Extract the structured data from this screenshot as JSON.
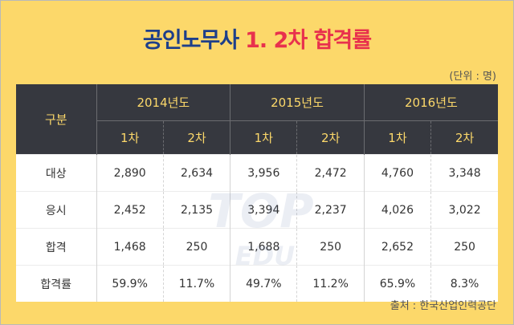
{
  "title": {
    "main": "공인노무사",
    "accent": "1. 2차 합격률"
  },
  "unit": "(단위 : 명)",
  "source": "출처 : 한국산업인력공단",
  "watermark": {
    "line1": "TOP",
    "line2": "EDU"
  },
  "table": {
    "category_header": "구분",
    "years": [
      "2014년도",
      "2015년도",
      "2016년도"
    ],
    "sub_headers": [
      "1차",
      "2차",
      "1차",
      "2차",
      "1차",
      "2차"
    ],
    "rows": [
      {
        "label": "대상",
        "values": [
          "2,890",
          "2,634",
          "3,956",
          "2,472",
          "4,760",
          "3,348"
        ]
      },
      {
        "label": "응시",
        "values": [
          "2,452",
          "2,135",
          "3,394",
          "2,237",
          "4,026",
          "3,022"
        ]
      },
      {
        "label": "합격",
        "values": [
          "1,468",
          "250",
          "1,688",
          "250",
          "2,652",
          "250"
        ]
      },
      {
        "label": "합격률",
        "values": [
          "59.9%",
          "11.7%",
          "49.7%",
          "11.2%",
          "65.9%",
          "8.3%"
        ]
      }
    ]
  }
}
